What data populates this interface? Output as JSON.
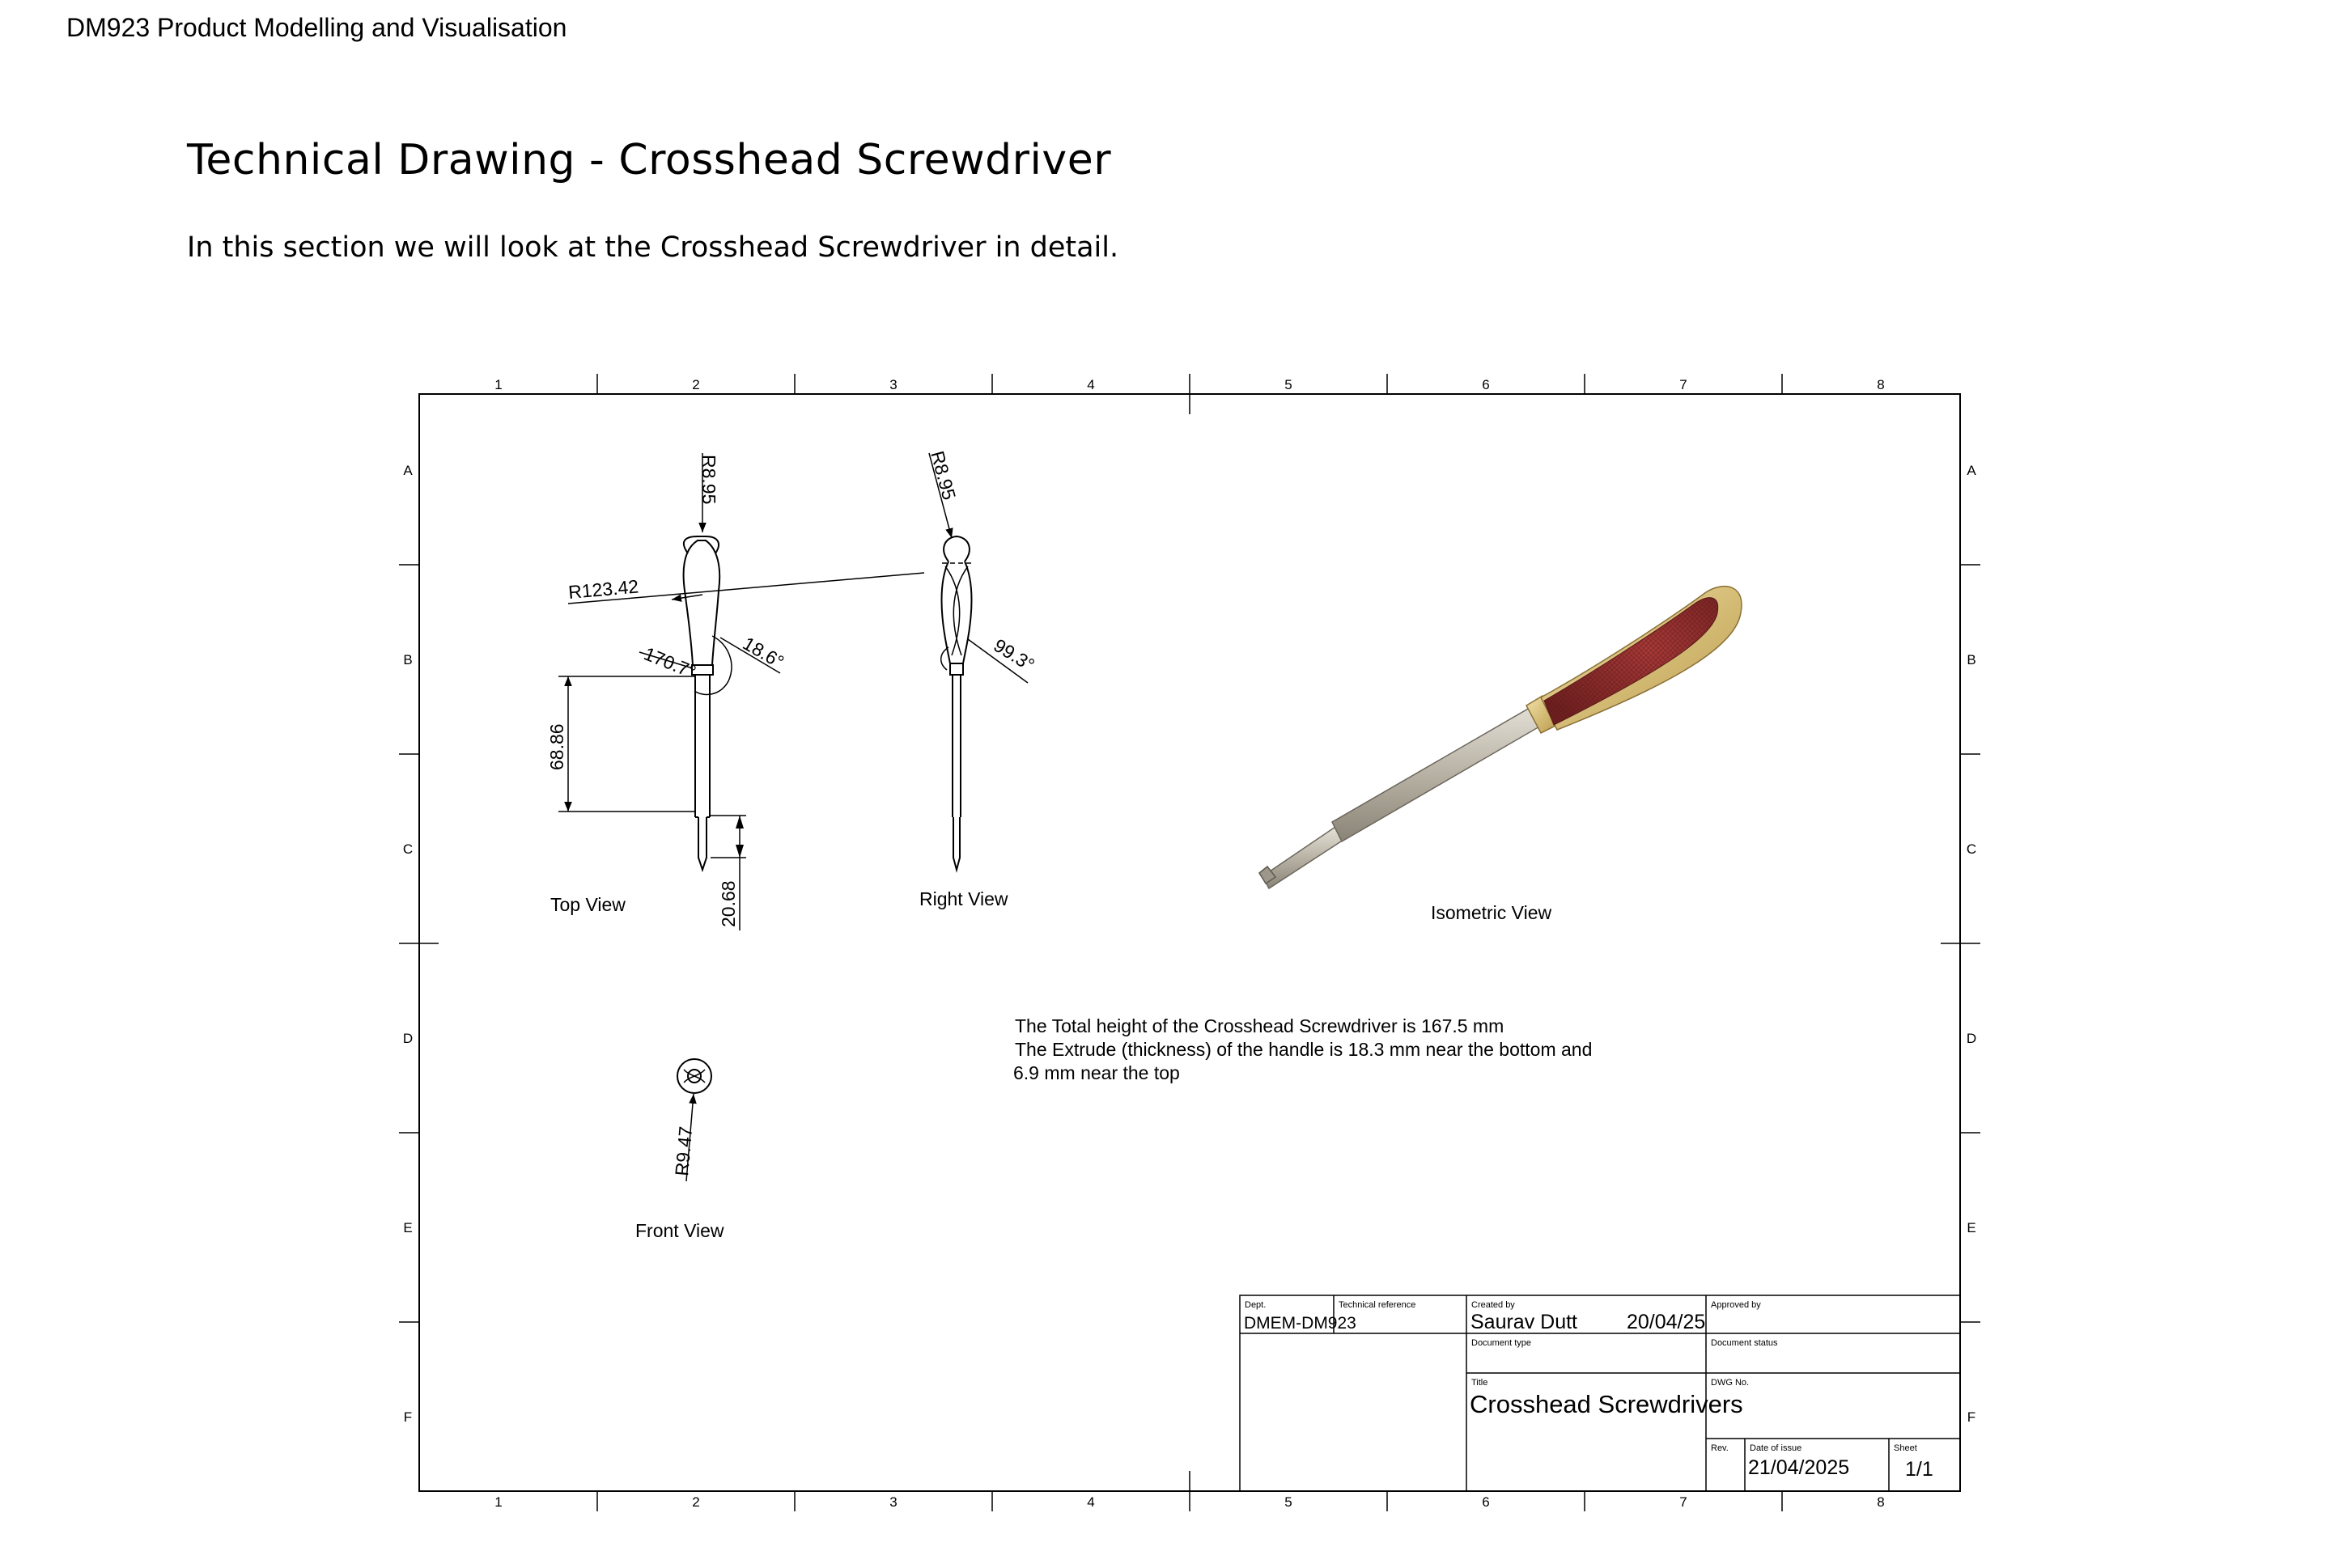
{
  "header": {
    "course": "DM923 Product Modelling and Visualisation"
  },
  "page": {
    "title": "Technical Drawing - Crosshead Screwdriver",
    "intro": "In this section we will look at the Crosshead Screwdriver in detail."
  },
  "drawing": {
    "grid_columns": [
      "1",
      "2",
      "3",
      "4",
      "5",
      "6",
      "7",
      "8"
    ],
    "grid_rows": [
      "A",
      "B",
      "C",
      "D",
      "E",
      "F"
    ],
    "views": {
      "top": "Top View",
      "right": "Right View",
      "isometric": "Isometric View",
      "front": "Front View"
    },
    "dimensions": {
      "top_radius": "R8.95",
      "right_radius": "R8.95",
      "long_radius": "R123.42",
      "angle_small": "18.6°",
      "angle_large": "170.7°",
      "angle_right": "99.3°",
      "length_shaft": "68.86",
      "length_tip": "20.68",
      "front_radius": "R9.47"
    },
    "notes": [
      "The Total height of the Crosshead Screwdriver is 167.5 mm",
      "The Extrude (thickness) of the handle is 18.3 mm near the bottom and",
      "6.9 mm near the top"
    ],
    "title_block": {
      "dept_label": "Dept.",
      "dept_value": "DMEM-DM923",
      "techref_label": "Technical reference",
      "created_label": "Created by",
      "created_value": "Saurav Dutt",
      "created_date": "20/04/25",
      "approved_label": "Approved by",
      "doctype_label": "Document type",
      "docstatus_label": "Document status",
      "title_label": "Title",
      "title_value": "Crosshead Screwdrivers",
      "dwg_label": "DWG No.",
      "rev_label": "Rev.",
      "issue_label": "Date of issue",
      "issue_value": "21/04/2025",
      "sheet_label": "Sheet",
      "sheet_value": "1/1"
    }
  },
  "colors": {
    "handle": "#8b2a2a",
    "handle_shell": "#d9c27a",
    "shaft": "#b9b3a6",
    "line": "#000000"
  }
}
